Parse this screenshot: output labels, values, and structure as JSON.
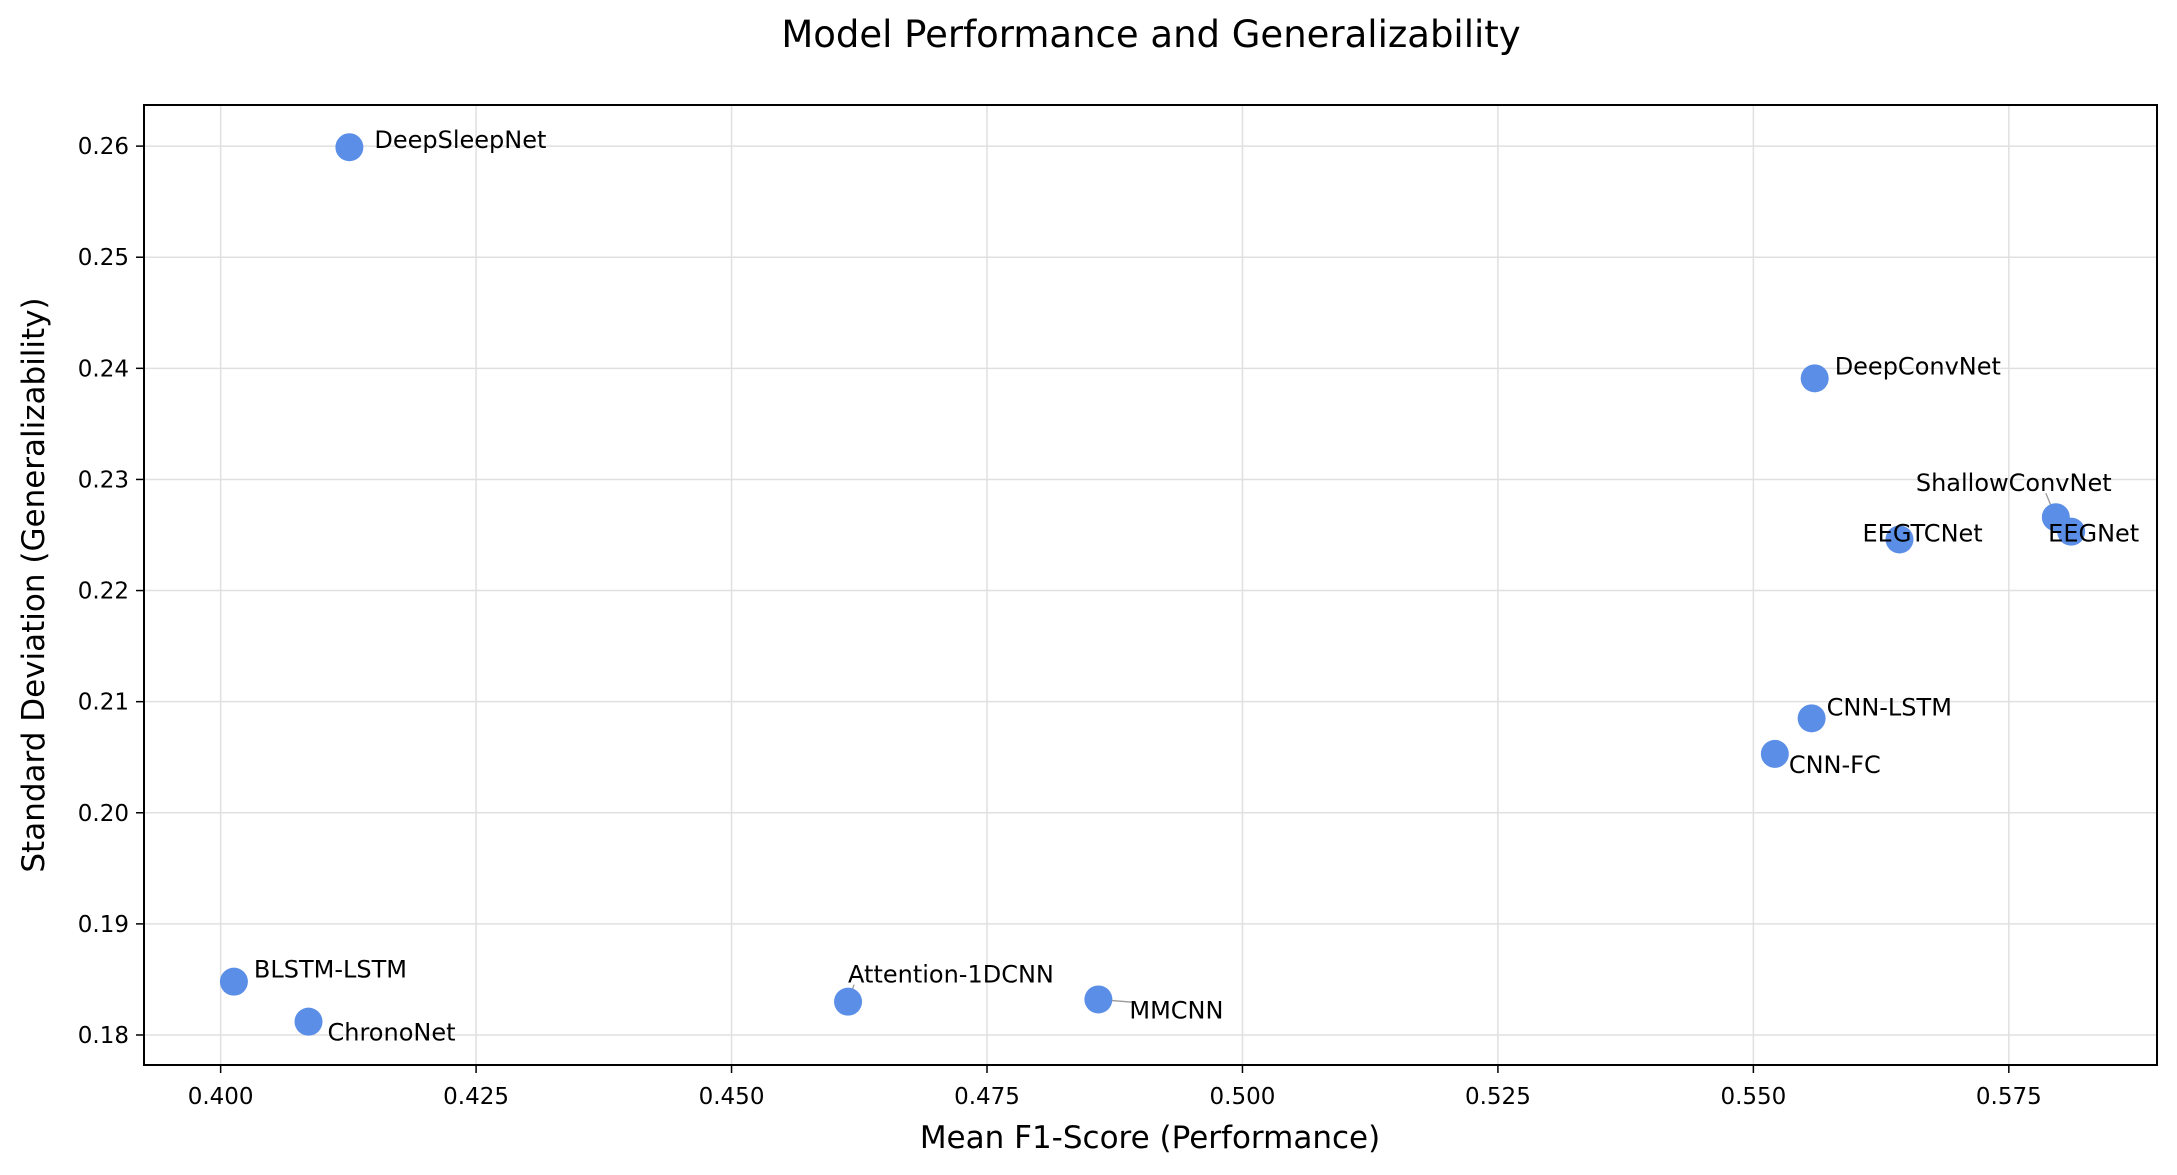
{
  "chart_data": {
    "type": "scatter",
    "title": "Model Performance and Generalizability",
    "xlabel": "Mean F1-Score (Performance)",
    "ylabel": "Standard Deviation (Generalizability)",
    "xlim": [
      0.3925,
      0.5895
    ],
    "ylim": [
      0.1773,
      0.2637
    ],
    "xticks": [
      0.4,
      0.425,
      0.45,
      0.475,
      0.5,
      0.525,
      0.55,
      0.575
    ],
    "xtick_labels": [
      "0.400",
      "0.425",
      "0.450",
      "0.475",
      "0.500",
      "0.525",
      "0.550",
      "0.575"
    ],
    "yticks": [
      0.18,
      0.19,
      0.2,
      0.21,
      0.22,
      0.23,
      0.24,
      0.25,
      0.26
    ],
    "ytick_labels": [
      "0.18",
      "0.19",
      "0.20",
      "0.21",
      "0.22",
      "0.23",
      "0.24",
      "0.25",
      "0.26"
    ],
    "grid": true,
    "point_color": "#5b8ee6",
    "points": [
      {
        "label": "DeepSleepNet",
        "x": 0.4126,
        "y": 0.2599
      },
      {
        "label": "DeepConvNet",
        "x": 0.556,
        "y": 0.2391
      },
      {
        "label": "ShallowConvNet",
        "x": 0.5796,
        "y": 0.2266
      },
      {
        "label": "EEGNet",
        "x": 0.5811,
        "y": 0.2253
      },
      {
        "label": "EEGTCNet",
        "x": 0.5643,
        "y": 0.2246
      },
      {
        "label": "CNN-LSTM",
        "x": 0.5557,
        "y": 0.2085
      },
      {
        "label": "CNN-FC",
        "x": 0.5521,
        "y": 0.2053
      },
      {
        "label": "BLSTM-LSTM",
        "x": 0.4013,
        "y": 0.1848
      },
      {
        "label": "ChronoNet",
        "x": 0.4086,
        "y": 0.1812
      },
      {
        "label": "Attention-1DCNN",
        "x": 0.4614,
        "y": 0.183
      },
      {
        "label": "MMCNN",
        "x": 0.4859,
        "y": 0.1832
      }
    ]
  }
}
